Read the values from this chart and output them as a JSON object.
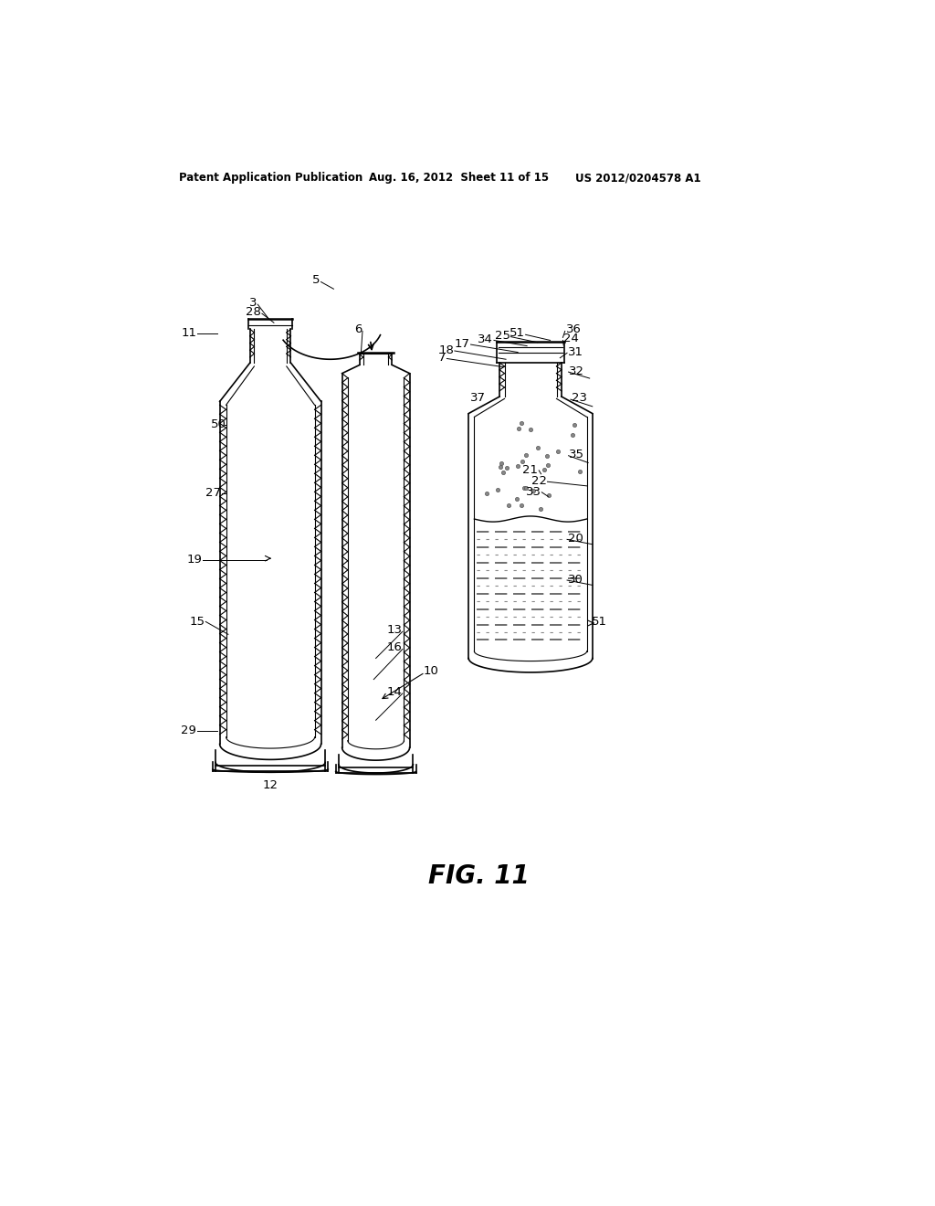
{
  "bg_color": "#ffffff",
  "header_left": "Patent Application Publication",
  "header_mid": "Aug. 16, 2012  Sheet 11 of 15",
  "header_right": "US 2012/0204578 A1",
  "figure_label": "FIG. 11"
}
